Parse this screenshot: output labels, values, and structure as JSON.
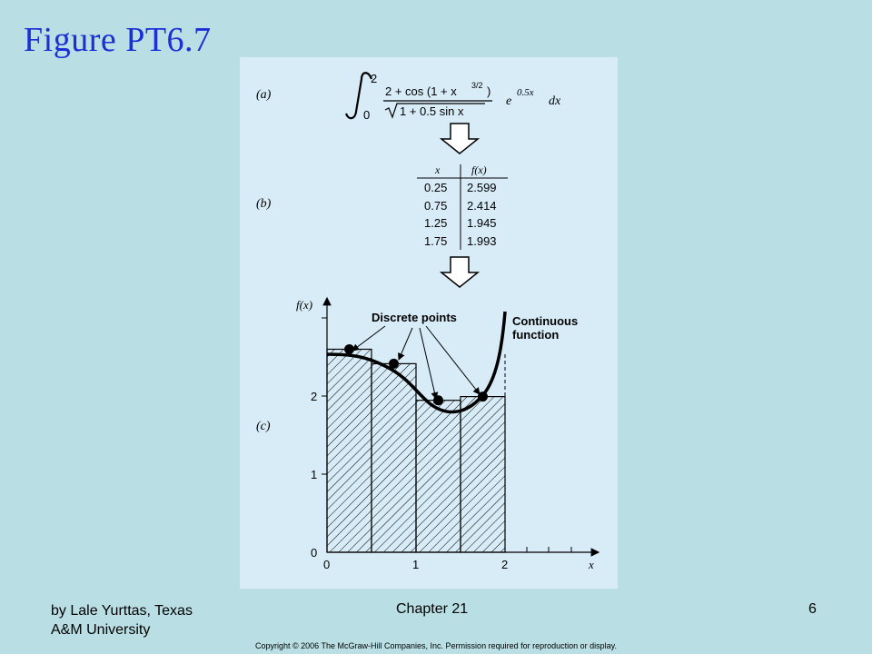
{
  "slide": {
    "title": "Figure PT6.7",
    "footer_author": "by Lale Yurttas, Texas A&M University",
    "footer_author_line1": "by Lale Yurttas, Texas",
    "footer_author_line2": "A&M University",
    "footer_chapter": "Chapter 21",
    "footer_page": "6",
    "copyright": "Copyright © 2006 The McGraw-Hill Companies, Inc. Permission required for reproduction or display."
  },
  "figure": {
    "part_a_label": "(a)",
    "part_b_label": "(b)",
    "part_c_label": "(c)",
    "integral": {
      "lower_limit": "0",
      "upper_limit": "2",
      "numerator": "2 + cos (1 + x",
      "numerator_exponent": "3/2",
      "numerator_close": ")",
      "denominator_radicand": "1 + 0.5 sin x",
      "exp_base": "e",
      "exp_power": "0.5x",
      "differential": "dx"
    },
    "table": {
      "headers": [
        "x",
        "f(x)"
      ],
      "rows": [
        {
          "x": "0.25",
          "fx": "2.599"
        },
        {
          "x": "0.75",
          "fx": "2.414"
        },
        {
          "x": "1.25",
          "fx": "1.945"
        },
        {
          "x": "1.75",
          "fx": "1.993"
        }
      ]
    },
    "plot": {
      "y_label": "f(x)",
      "x_label": "x",
      "y_ticks": [
        "0",
        "1",
        "2"
      ],
      "x_ticks": [
        "0",
        "1",
        "2"
      ],
      "annotation_discrete": "Discrete points",
      "annotation_continuous_line1": "Continuous",
      "annotation_continuous_line2": "function"
    }
  },
  "chart_data": {
    "type": "bar",
    "categories": [
      "0.25",
      "0.75",
      "1.25",
      "1.75"
    ],
    "values": [
      2.599,
      2.414,
      1.945,
      1.993
    ],
    "xlabel": "x",
    "ylabel": "f(x)",
    "xlim": [
      0,
      3
    ],
    "ylim": [
      0,
      3
    ]
  }
}
